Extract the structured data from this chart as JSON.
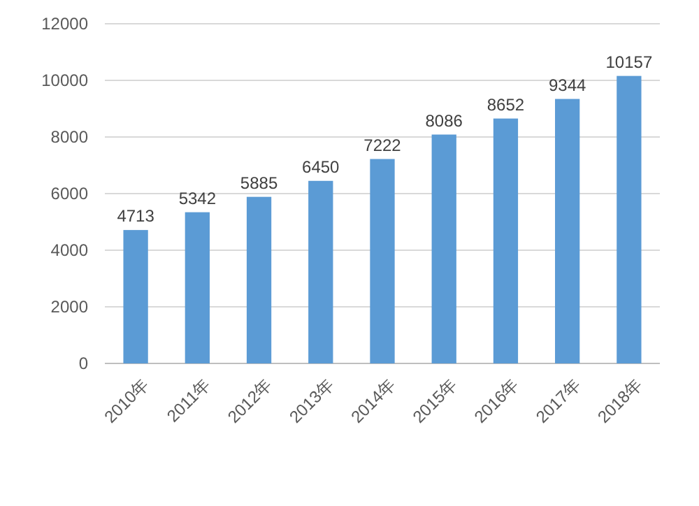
{
  "chart_data": {
    "type": "bar",
    "categories": [
      "2010年",
      "2011年",
      "2012年",
      "2013年",
      "2014年",
      "2015年",
      "2016年",
      "2017年",
      "2018年"
    ],
    "values": [
      4713,
      5342,
      5885,
      6450,
      7222,
      8086,
      8652,
      9344,
      10157
    ],
    "color": "#5b9bd5",
    "ylim": [
      0,
      12000
    ],
    "yticks": [
      0,
      2000,
      4000,
      6000,
      8000,
      10000,
      12000
    ],
    "grid": "y",
    "data_labels": true
  }
}
